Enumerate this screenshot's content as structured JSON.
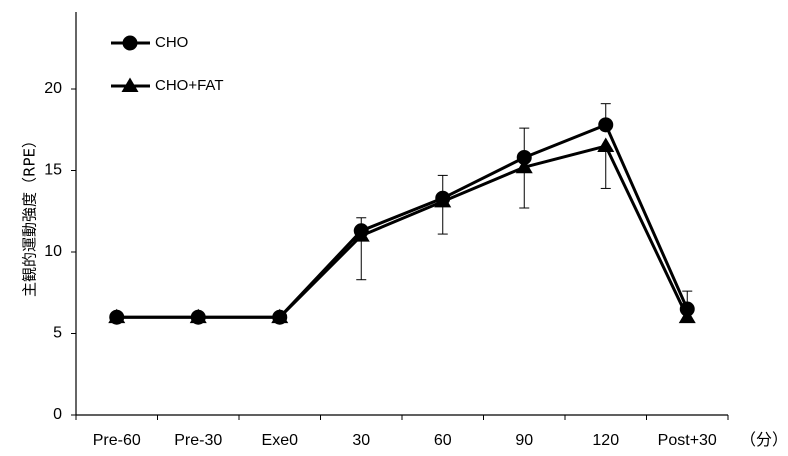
{
  "chart_data": {
    "type": "line",
    "title": "",
    "ylabel": "主観的運動強度（RPE）",
    "xunit": "（分）",
    "categories": [
      "Pre-60",
      "Pre-30",
      "Exe0",
      "30",
      "60",
      "90",
      "120",
      "Post+30"
    ],
    "ylim": [
      0,
      25
    ],
    "yticks": [
      0,
      5,
      10,
      15,
      20
    ],
    "grid": false,
    "legend_position": "top-left",
    "series": [
      {
        "name": "CHO",
        "marker": "circle",
        "values": [
          6.0,
          6.0,
          6.0,
          11.3,
          13.3,
          15.8,
          17.8,
          6.5
        ],
        "error": [
          0,
          0,
          0,
          0.8,
          1.4,
          1.8,
          1.3,
          1.1
        ]
      },
      {
        "name": "CHO+FAT",
        "marker": "triangle",
        "values": [
          6.0,
          6.0,
          6.0,
          11.0,
          13.1,
          15.2,
          16.5,
          6.0
        ],
        "error": [
          0,
          0,
          0,
          2.7,
          2.0,
          2.5,
          2.6,
          0
        ]
      }
    ],
    "colors": {
      "line": "#000000",
      "axis": "#000000"
    }
  }
}
